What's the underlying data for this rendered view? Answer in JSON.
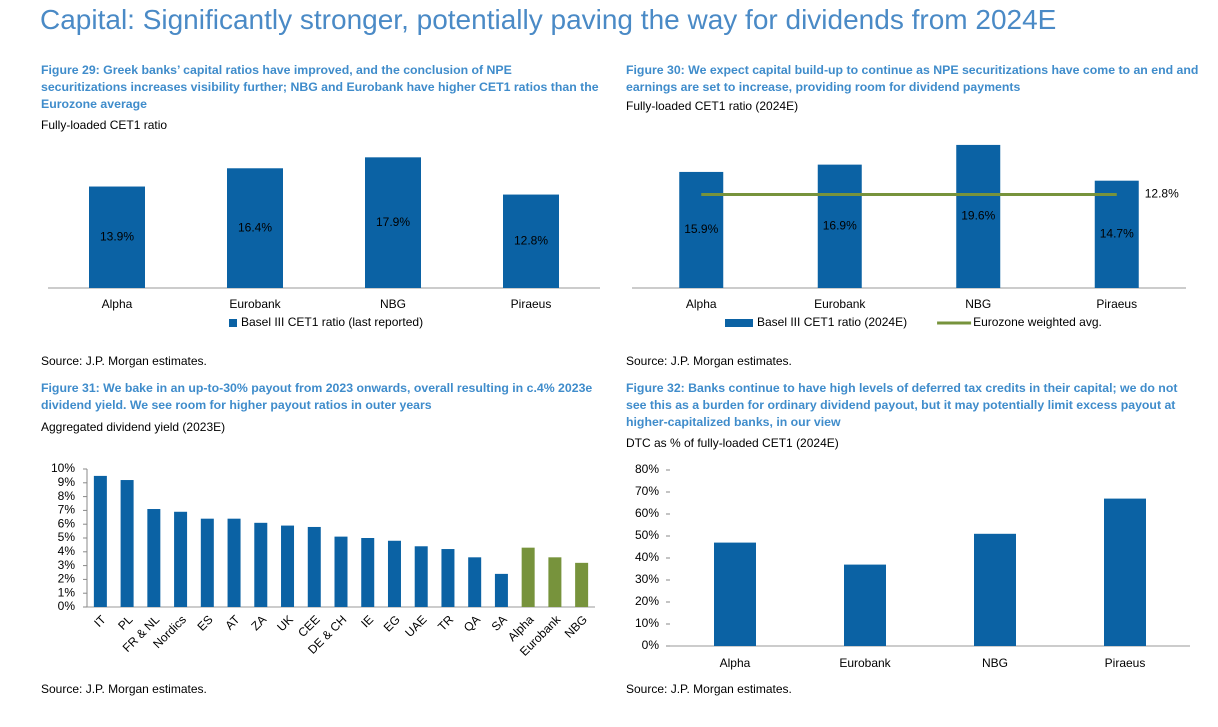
{
  "title": "Capital: Significantly stronger, potentially paving the way for dividends from 2024E",
  "chart_data": [
    {
      "type": "bar",
      "title": "Figure 29: Greek banks’ capital ratios have improved, and the conclusion of NPE securitizations increases visibility further; NBG and Eurobank have higher CET1 ratios than the Eurozone average",
      "subtitle": "Fully-loaded CET1 ratio",
      "source": "Source: J.P. Morgan estimates.",
      "categories": [
        "Alpha",
        "Eurobank",
        "NBG",
        "Piraeus"
      ],
      "series": [
        {
          "name": "Basel III CET1 ratio (last reported)",
          "color": "#0b62a4",
          "values": [
            13.9,
            16.4,
            17.9,
            12.8
          ],
          "value_labels": [
            "13.9%",
            "16.4%",
            "17.9%",
            "12.8%"
          ]
        }
      ]
    },
    {
      "type": "bar",
      "title": "Figure 30: We expect capital build-up to continue as NPE securitizations have come to an end and earnings are set to increase, providing room for dividend payments",
      "subtitle": "Fully-loaded CET1 ratio (2024E)",
      "source": "Source: J.P. Morgan estimates.",
      "categories": [
        "Alpha",
        "Eurobank",
        "NBG",
        "Piraeus"
      ],
      "series": [
        {
          "name": "Basel III CET1 ratio (2024E)",
          "color": "#0b62a4",
          "values": [
            15.9,
            16.9,
            19.6,
            14.7
          ],
          "value_labels": [
            "15.9%",
            "16.9%",
            "19.6%",
            "14.7%"
          ]
        },
        {
          "name": "Eurozone weighted avg.",
          "type": "hline",
          "color": "#77933c",
          "value": 12.8,
          "value_label": "12.8%"
        }
      ]
    },
    {
      "type": "bar",
      "title": "Figure 31: We bake in an up-to-30% payout from 2023 onwards, overall resulting in c.4% 2023e dividend yield. We see room for higher payout ratios in outer years",
      "subtitle": "Aggregated dividend yield (2023E)",
      "source": "Source: J.P. Morgan estimates.",
      "categories": [
        "IT",
        "PL",
        "FR & NL",
        "Nordics",
        "ES",
        "AT",
        "ZA",
        "UK",
        "CEE",
        "DE & CH",
        "IE",
        "EG",
        "UAE",
        "TR",
        "QA",
        "SA",
        "Alpha",
        "Eurobank",
        "NBG"
      ],
      "values": [
        9.5,
        9.2,
        7.1,
        6.9,
        6.4,
        6.4,
        6.1,
        5.9,
        5.8,
        5.1,
        5.0,
        4.8,
        4.4,
        4.2,
        3.6,
        2.4,
        4.3,
        3.6,
        3.2
      ],
      "colors": [
        "#0b62a4",
        "#0b62a4",
        "#0b62a4",
        "#0b62a4",
        "#0b62a4",
        "#0b62a4",
        "#0b62a4",
        "#0b62a4",
        "#0b62a4",
        "#0b62a4",
        "#0b62a4",
        "#0b62a4",
        "#0b62a4",
        "#0b62a4",
        "#0b62a4",
        "#0b62a4",
        "#77933c",
        "#77933c",
        "#77933c"
      ],
      "ylim": [
        0,
        10
      ],
      "yticks": [
        {
          "value": 0,
          "label": "0%"
        },
        {
          "value": 1,
          "label": "1%"
        },
        {
          "value": 2,
          "label": "2%"
        },
        {
          "value": 3,
          "label": "3%"
        },
        {
          "value": 4,
          "label": "4%"
        },
        {
          "value": 5,
          "label": "5%"
        },
        {
          "value": 6,
          "label": "6%"
        },
        {
          "value": 7,
          "label": "7%"
        },
        {
          "value": 8,
          "label": "8%"
        },
        {
          "value": 9,
          "label": "9%"
        },
        {
          "value": 10,
          "label": "10%"
        }
      ]
    },
    {
      "type": "bar",
      "title": "Figure 32: Banks continue to have high levels of deferred tax credits in their capital; we do not see this as a burden for ordinary dividend payout, but it may potentially limit excess payout at higher-capitalized banks, in our view",
      "subtitle": "DTC as % of fully-loaded CET1 (2024E)",
      "source": "Source: J.P. Morgan estimates.",
      "categories": [
        "Alpha",
        "Eurobank",
        "NBG",
        "Piraeus"
      ],
      "values": [
        47,
        37,
        51,
        67
      ],
      "color": "#0b62a4",
      "ylim": [
        0,
        80
      ],
      "yticks": [
        {
          "value": 0,
          "label": "0%"
        },
        {
          "value": 10,
          "label": "10%"
        },
        {
          "value": 20,
          "label": "20%"
        },
        {
          "value": 30,
          "label": "30%"
        },
        {
          "value": 40,
          "label": "40%"
        },
        {
          "value": 50,
          "label": "50%"
        },
        {
          "value": 60,
          "label": "60%"
        },
        {
          "value": 70,
          "label": "70%"
        },
        {
          "value": 80,
          "label": "80%"
        }
      ]
    }
  ]
}
